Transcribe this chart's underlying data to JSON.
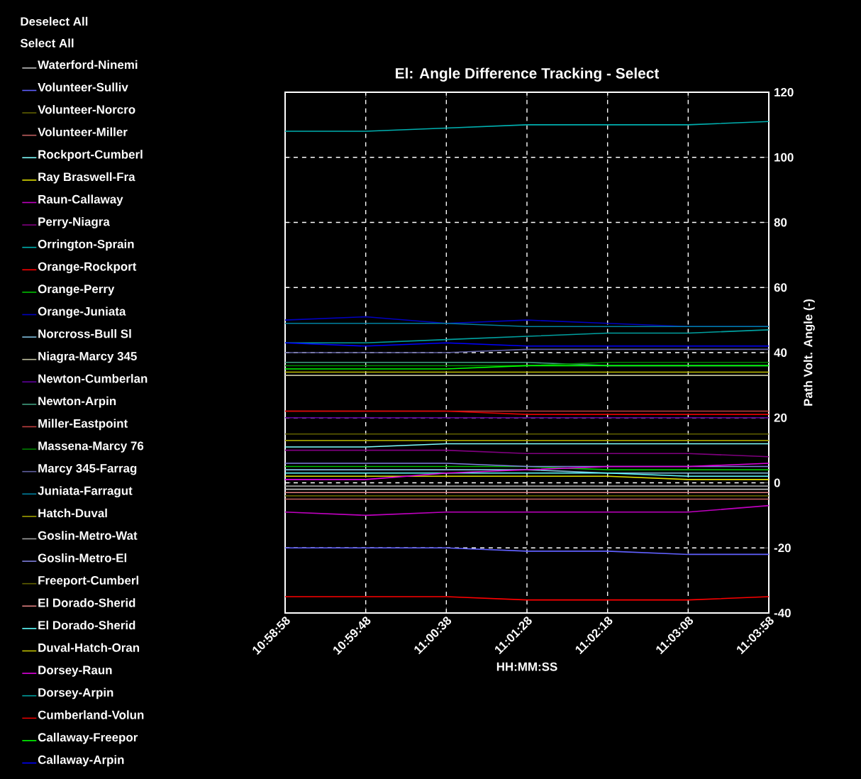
{
  "chart_data": {
    "type": "line",
    "title": "El: Angle Difference Tracking - Select",
    "xlabel": "HH:MM:SS",
    "ylabel": "Path Volt. Angle (-)",
    "annotations": [
      "Deselect All",
      "Select All"
    ],
    "x": [
      10.982778,
      10.996667,
      11.010556,
      11.024444,
      11.038333,
      11.052222,
      11.066111
    ],
    "xlim": [
      10.982778,
      11.066111
    ],
    "xticks": [
      {
        "value": 10.982778,
        "label": "10:58:58"
      },
      {
        "value": 10.996667,
        "label": "10:59:48"
      },
      {
        "value": 11.010556,
        "label": "11:00:38"
      },
      {
        "value": 11.024444,
        "label": "11:01:28"
      },
      {
        "value": 11.038333,
        "label": "11:02:18"
      },
      {
        "value": 11.052222,
        "label": "11:03:08"
      },
      {
        "value": 11.066111,
        "label": "11:03:58"
      }
    ],
    "ylim": [
      -40,
      120
    ],
    "yticks": [
      -40,
      -20,
      0,
      20,
      40,
      60,
      80,
      100,
      120
    ],
    "grid": true,
    "legend": "left",
    "marker": "none",
    "line_style": "solid",
    "series": [
      {
        "name": "Waterford-Ninemi",
        "color": "#c0c0c0",
        "values": [
          -2,
          -2,
          -2,
          -2,
          -2,
          -2,
          -2
        ]
      },
      {
        "name": "Volunteer-Sulliv",
        "color": "#6060ff",
        "values": [
          -20,
          -20,
          -20,
          -21,
          -21,
          -22,
          -22
        ]
      },
      {
        "name": "Volunteer-Norcro",
        "color": "#606000",
        "values": [
          15,
          15,
          15,
          15,
          15,
          15,
          15
        ]
      },
      {
        "name": "Volunteer-Miller",
        "color": "#c06060",
        "values": [
          -5,
          -5,
          -5,
          -5,
          -5,
          -5,
          -5
        ]
      },
      {
        "name": "Rockport-Cumberl",
        "color": "#80ffff",
        "values": [
          11,
          11,
          12,
          12,
          12,
          12,
          12
        ]
      },
      {
        "name": "Ray Braswell-Fra",
        "color": "#e0e000",
        "values": [
          2,
          2,
          2,
          2,
          2,
          1,
          1
        ]
      },
      {
        "name": "Raun-Callaway",
        "color": "#c000c0",
        "values": [
          -9,
          -10,
          -9,
          -9,
          -9,
          -9,
          -7
        ]
      },
      {
        "name": "Perry-Niagra",
        "color": "#800080",
        "values": [
          10,
          10,
          10,
          9,
          9,
          9,
          8
        ]
      },
      {
        "name": "Orrington-Sprain",
        "color": "#00b0b0",
        "values": [
          108,
          108,
          109,
          110,
          110,
          110,
          111
        ]
      },
      {
        "name": "Orange-Rockport",
        "color": "#ff0000",
        "values": [
          -35,
          -35,
          -35,
          -36,
          -36,
          -36,
          -35
        ]
      },
      {
        "name": "Orange-Perry",
        "color": "#00c000",
        "values": [
          5,
          5,
          5,
          5,
          4,
          4,
          4
        ]
      },
      {
        "name": "Orange-Juniata",
        "color": "#0000c0",
        "values": [
          50,
          51,
          49,
          50,
          49,
          48,
          48
        ]
      },
      {
        "name": "Norcross-Bull Sl",
        "color": "#80c0e0",
        "values": [
          4,
          4,
          4,
          4,
          3,
          3,
          3
        ]
      },
      {
        "name": "Niagra-Marcy 345",
        "color": "#c0c0a0",
        "values": [
          33,
          33,
          33,
          33,
          33,
          33,
          33
        ]
      },
      {
        "name": "Newton-Cumberlan",
        "color": "#6000a0",
        "values": [
          20,
          20,
          20,
          20,
          20,
          20,
          20
        ]
      },
      {
        "name": "Newton-Arpin",
        "color": "#40a080",
        "values": [
          37,
          37,
          37,
          37,
          36,
          36,
          36
        ]
      },
      {
        "name": "Miller-Eastpoint",
        "color": "#c04040",
        "values": [
          22,
          22,
          22,
          22,
          22,
          22,
          22
        ]
      },
      {
        "name": "Massena-Marcy 76",
        "color": "#008000",
        "values": [
          36,
          36,
          36,
          36,
          37,
          37,
          37
        ]
      },
      {
        "name": "Marcy 345-Farrag",
        "color": "#6060a0",
        "values": [
          40,
          40,
          40,
          41,
          41,
          41,
          41
        ]
      },
      {
        "name": "Juniata-Farragut",
        "color": "#0080a0",
        "values": [
          49,
          49,
          49,
          48,
          48,
          48,
          48
        ]
      },
      {
        "name": "Hatch-Duval",
        "color": "#a0a000",
        "values": [
          13,
          13,
          13,
          13,
          13,
          13,
          13
        ]
      },
      {
        "name": "Goslin-Metro-Wat",
        "color": "#a0a0a0",
        "values": [
          -1,
          -1,
          -1,
          -1,
          -1,
          -1,
          -1
        ]
      },
      {
        "name": "Goslin-Metro-El",
        "color": "#8080e0",
        "values": [
          6,
          6,
          6,
          5,
          5,
          5,
          5
        ]
      },
      {
        "name": "Freeport-Cumberl",
        "color": "#606000",
        "values": [
          -4,
          -4,
          -4,
          -4,
          -4,
          -4,
          -4
        ]
      },
      {
        "name": "El Dorado-Sherid",
        "color": "#e08080",
        "values": [
          -3,
          -3,
          -3,
          -3,
          -3,
          -3,
          -3
        ]
      },
      {
        "name": "El Dorado-Sherid",
        "color": "#60ffff",
        "values": [
          3,
          3,
          3,
          3,
          3,
          2,
          2
        ]
      },
      {
        "name": "Duval-Hatch-Oran",
        "color": "#c0c000",
        "values": [
          34,
          34,
          34,
          34,
          34,
          34,
          34
        ]
      },
      {
        "name": "Dorsey-Raun",
        "color": "#e000e0",
        "values": [
          1,
          1,
          3,
          4,
          5,
          5,
          6
        ]
      },
      {
        "name": "Dorsey-Arpin",
        "color": "#00a0a0",
        "values": [
          43,
          43,
          44,
          45,
          46,
          46,
          47
        ]
      },
      {
        "name": "Cumberland-Volun",
        "color": "#e00000",
        "values": [
          22,
          22,
          22,
          21,
          21,
          21,
          21
        ]
      },
      {
        "name": "Callaway-Freepor",
        "color": "#00ff00",
        "values": [
          35,
          35,
          35,
          36,
          36,
          36,
          36
        ]
      },
      {
        "name": "Callaway-Arpin",
        "color": "#0000ff",
        "values": [
          43,
          42,
          43,
          42,
          42,
          42,
          42
        ]
      }
    ]
  }
}
